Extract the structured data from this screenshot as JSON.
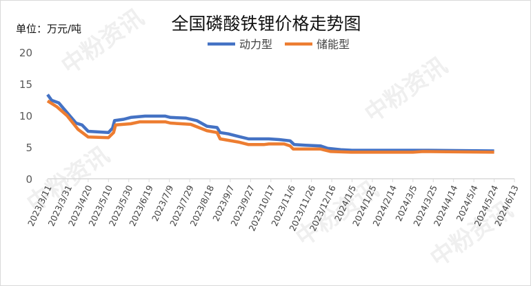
{
  "watermark": "中粉资讯",
  "chart_data": {
    "type": "line",
    "title": "全国磷酸铁锂价格走势图",
    "unit_label": "单位：万元/吨",
    "ylim": [
      0,
      20
    ],
    "yticks": [
      0,
      5,
      10,
      15,
      20
    ],
    "xlim": [
      "2023/3/11",
      "2024/6/13"
    ],
    "xticks": [
      "2023/3/11",
      "2023/3/31",
      "2023/4/20",
      "2023/5/10",
      "2023/5/30",
      "2023/6/19",
      "2023/7/9",
      "2023/7/29",
      "2023/8/18",
      "2023/9/7",
      "2023/9/27",
      "2023/10/17",
      "2023/11/6",
      "2023/11/26",
      "2023/12/16",
      "2024/1/5",
      "2024/1/25",
      "2024/2/14",
      "2024/3/5",
      "2024/3/25",
      "2024/4/14",
      "2024/5/4",
      "2024/5/24",
      "2024/6/13"
    ],
    "grid": false,
    "legend_position": "top",
    "series": [
      {
        "name": "动力型",
        "color": "#4472C4",
        "points": [
          [
            "2023/3/11",
            13.3
          ],
          [
            "2023/3/15",
            12.4
          ],
          [
            "2023/3/22",
            12.0
          ],
          [
            "2023/3/30",
            10.5
          ],
          [
            "2023/4/8",
            8.8
          ],
          [
            "2023/4/14",
            8.5
          ],
          [
            "2023/4/20",
            7.5
          ],
          [
            "2023/5/10",
            7.3
          ],
          [
            "2023/5/14",
            8.0
          ],
          [
            "2023/5/16",
            9.2
          ],
          [
            "2023/5/25",
            9.4
          ],
          [
            "2023/6/1",
            9.7
          ],
          [
            "2023/6/15",
            9.9
          ],
          [
            "2023/7/5",
            9.9
          ],
          [
            "2023/7/10",
            9.7
          ],
          [
            "2023/7/25",
            9.6
          ],
          [
            "2023/8/5",
            9.2
          ],
          [
            "2023/8/15",
            8.3
          ],
          [
            "2023/8/25",
            8.1
          ],
          [
            "2023/8/28",
            7.3
          ],
          [
            "2023/9/5",
            7.1
          ],
          [
            "2023/9/15",
            6.7
          ],
          [
            "2023/9/25",
            6.3
          ],
          [
            "2023/10/15",
            6.3
          ],
          [
            "2023/10/25",
            6.2
          ],
          [
            "2023/11/5",
            6.0
          ],
          [
            "2023/11/9",
            5.4
          ],
          [
            "2023/11/20",
            5.3
          ],
          [
            "2023/12/5",
            5.2
          ],
          [
            "2023/12/12",
            4.8
          ],
          [
            "2023/12/25",
            4.6
          ],
          [
            "2024/1/5",
            4.5
          ],
          [
            "2024/3/1",
            4.5
          ],
          [
            "2024/3/20",
            4.5
          ],
          [
            "2024/5/24",
            4.4
          ]
        ]
      },
      {
        "name": "储能型",
        "color": "#ED7D31",
        "points": [
          [
            "2023/3/11",
            12.3
          ],
          [
            "2023/3/20",
            11.4
          ],
          [
            "2023/3/30",
            10.0
          ],
          [
            "2023/4/10",
            7.8
          ],
          [
            "2023/4/20",
            6.6
          ],
          [
            "2023/5/10",
            6.5
          ],
          [
            "2023/5/15",
            7.3
          ],
          [
            "2023/5/17",
            8.5
          ],
          [
            "2023/6/1",
            8.7
          ],
          [
            "2023/6/10",
            9.0
          ],
          [
            "2023/7/5",
            9.0
          ],
          [
            "2023/7/10",
            8.8
          ],
          [
            "2023/7/30",
            8.6
          ],
          [
            "2023/8/15",
            7.6
          ],
          [
            "2023/8/25",
            7.3
          ],
          [
            "2023/8/28",
            6.3
          ],
          [
            "2023/9/15",
            5.8
          ],
          [
            "2023/9/25",
            5.4
          ],
          [
            "2023/10/10",
            5.4
          ],
          [
            "2023/10/15",
            5.5
          ],
          [
            "2023/10/30",
            5.5
          ],
          [
            "2023/11/5",
            5.2
          ],
          [
            "2023/11/8",
            4.7
          ],
          [
            "2023/12/5",
            4.7
          ],
          [
            "2023/12/15",
            4.3
          ],
          [
            "2024/1/5",
            4.2
          ],
          [
            "2024/3/5",
            4.2
          ],
          [
            "2024/3/15",
            4.3
          ],
          [
            "2024/5/24",
            4.2
          ]
        ]
      }
    ]
  }
}
